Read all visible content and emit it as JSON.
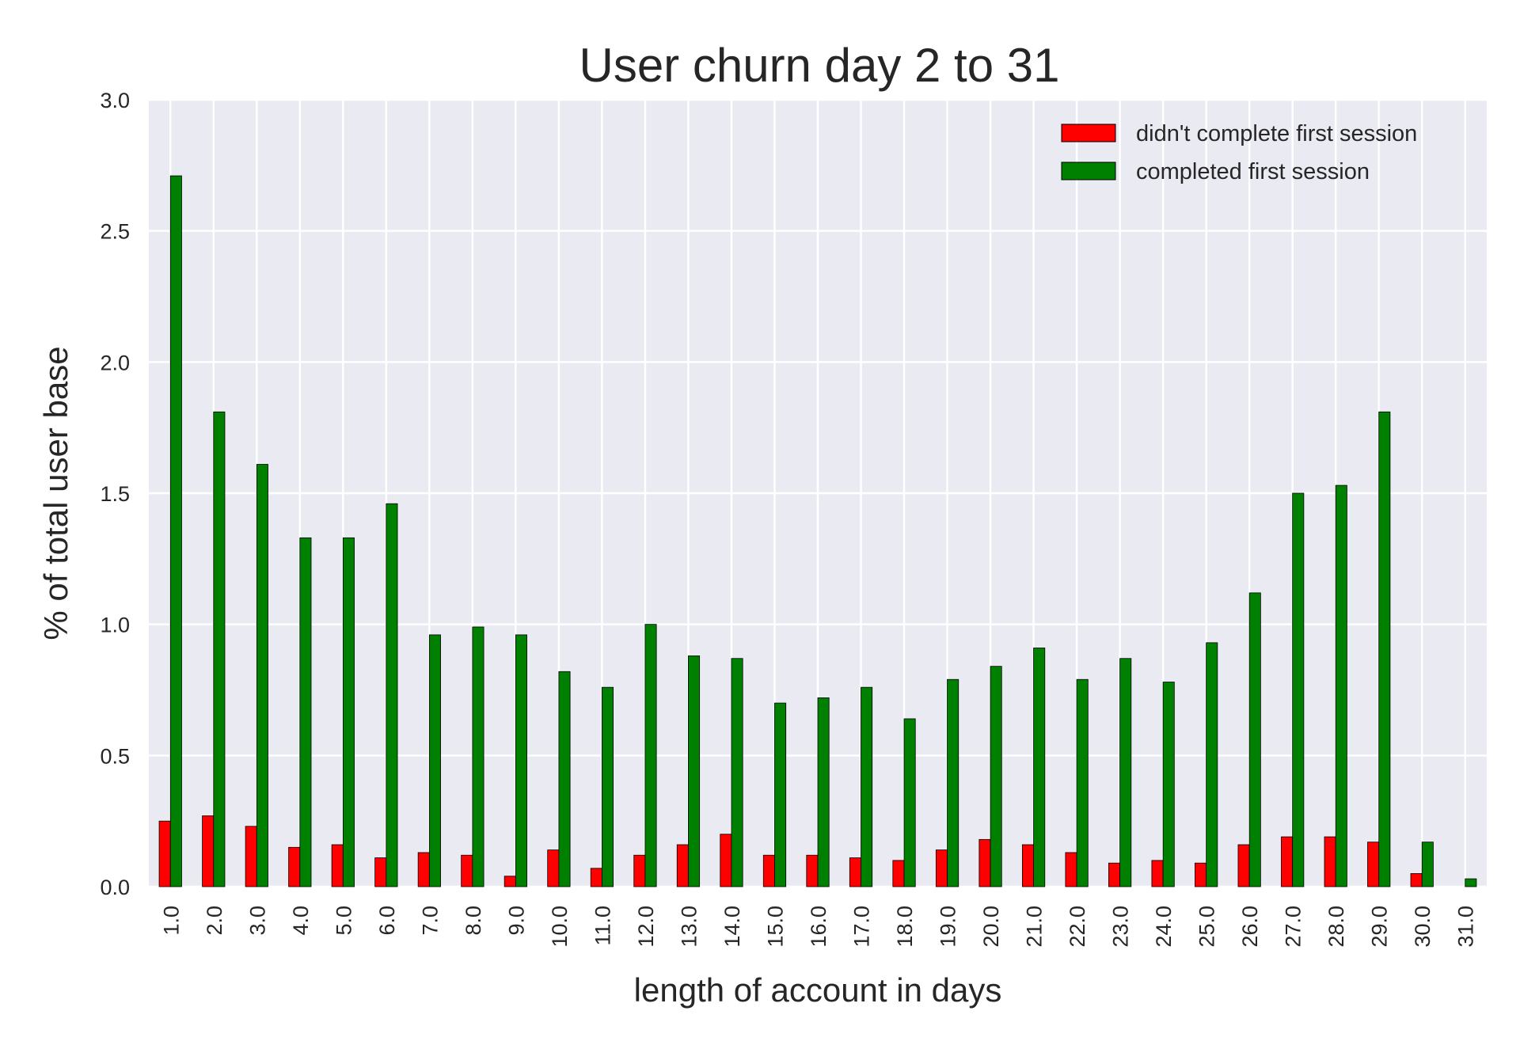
{
  "chart_data": {
    "type": "bar",
    "title": "User churn day 2 to 31",
    "xlabel": "length of account in days",
    "ylabel": "% of total user base",
    "categories": [
      "1.0",
      "2.0",
      "3.0",
      "4.0",
      "5.0",
      "6.0",
      "7.0",
      "8.0",
      "9.0",
      "10.0",
      "11.0",
      "12.0",
      "13.0",
      "14.0",
      "15.0",
      "16.0",
      "17.0",
      "18.0",
      "19.0",
      "20.0",
      "21.0",
      "22.0",
      "23.0",
      "24.0",
      "25.0",
      "26.0",
      "27.0",
      "28.0",
      "29.0",
      "30.0",
      "31.0"
    ],
    "series": [
      {
        "name": "didn't complete first session",
        "color": "#ff0000",
        "values": [
          0.25,
          0.27,
          0.23,
          0.15,
          0.16,
          0.11,
          0.13,
          0.12,
          0.04,
          0.14,
          0.07,
          0.12,
          0.16,
          0.2,
          0.12,
          0.12,
          0.11,
          0.1,
          0.14,
          0.18,
          0.16,
          0.13,
          0.09,
          0.1,
          0.09,
          0.16,
          0.19,
          0.19,
          0.17,
          0.05,
          0.0
        ]
      },
      {
        "name": "completed first session",
        "color": "#008000",
        "values": [
          2.71,
          1.81,
          1.61,
          1.33,
          1.33,
          1.46,
          0.96,
          0.99,
          0.96,
          0.82,
          0.76,
          1.0,
          0.88,
          0.87,
          0.7,
          0.72,
          0.76,
          0.64,
          0.79,
          0.84,
          0.91,
          0.79,
          0.87,
          0.78,
          0.93,
          1.12,
          1.5,
          1.53,
          1.81,
          0.17,
          0.03
        ]
      }
    ],
    "ylim": [
      0,
      3.0
    ],
    "yticks": [
      "0.0",
      "0.5",
      "1.0",
      "1.5",
      "2.0",
      "2.5",
      "3.0"
    ],
    "grid": true,
    "legend_position": "top-right",
    "background_color": "#eaeaf2",
    "grid_color": "#ffffff"
  }
}
